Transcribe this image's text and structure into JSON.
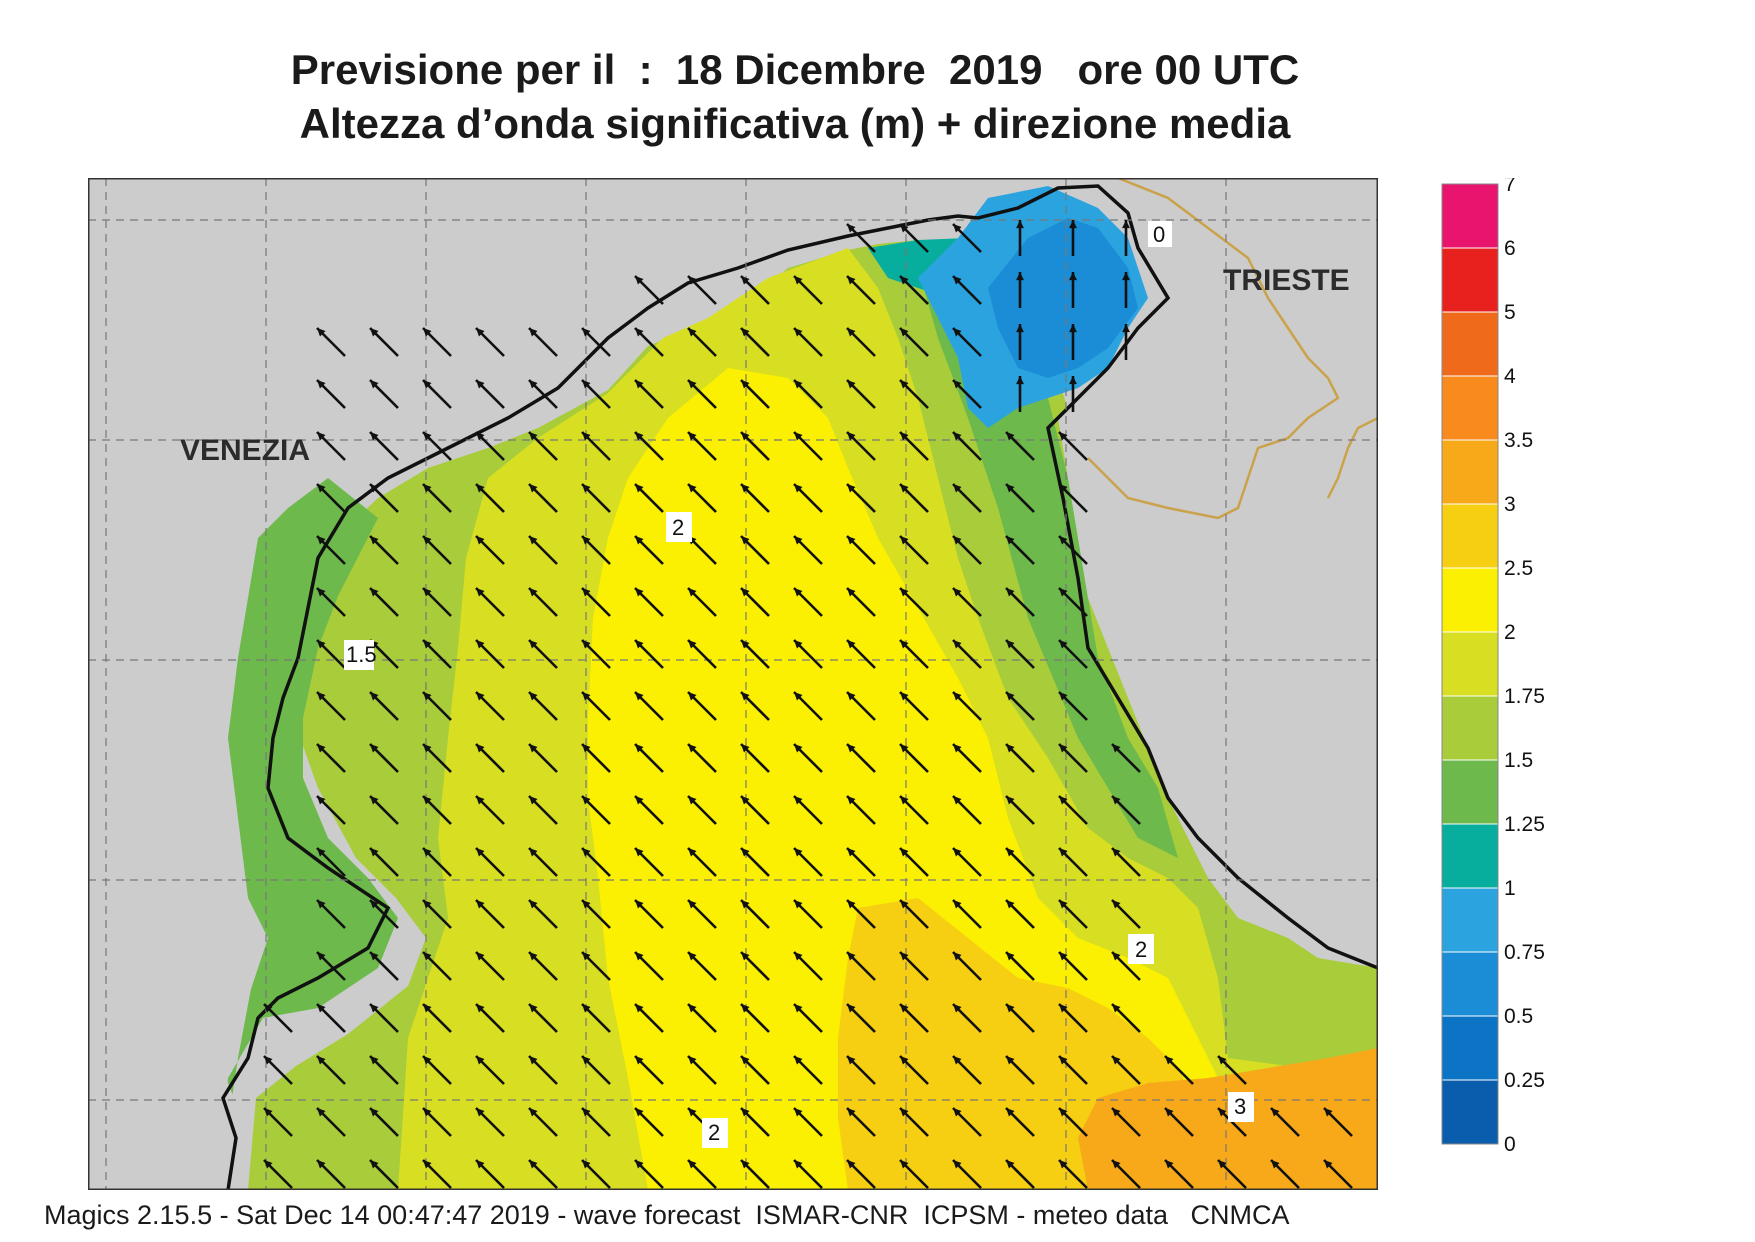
{
  "title": {
    "line1": "Previsione per il  :  18 Dicembre  2019   ore 00 UTC",
    "line2": "Altezza d’onda significativa (m) + direzione media"
  },
  "map": {
    "cities": [
      "VENEZIA",
      "TRIESTE"
    ],
    "contour_labels": [
      "2",
      "1.5",
      "2",
      "2",
      "3",
      "0"
    ],
    "arrow_direction": "north-west",
    "land_color": "#cccccc",
    "grid": "dashed"
  },
  "legend": {
    "ticks": [
      "7",
      "6",
      "5",
      "4",
      "3.5",
      "3",
      "2.5",
      "2",
      "1.75",
      "1.5",
      "1.25",
      "1",
      "0.75",
      "0.5",
      "0.25",
      "0"
    ],
    "colors": [
      "#e8146e",
      "#e8201e",
      "#f06a1c",
      "#f88a1e",
      "#f7a91a",
      "#f7cf12",
      "#fbf001",
      "#d8de21",
      "#a8cc3a",
      "#6db94c",
      "#07ae9e",
      "#2aa3df",
      "#1a8dd6",
      "#0b74c4",
      "#0a5dac"
    ]
  },
  "footer": "Magics 2.15.5 - Sat Dec 14 00:47:47 2019 - wave forecast  ISMAR-CNR  ICPSM - meteo data   CNMCA"
}
